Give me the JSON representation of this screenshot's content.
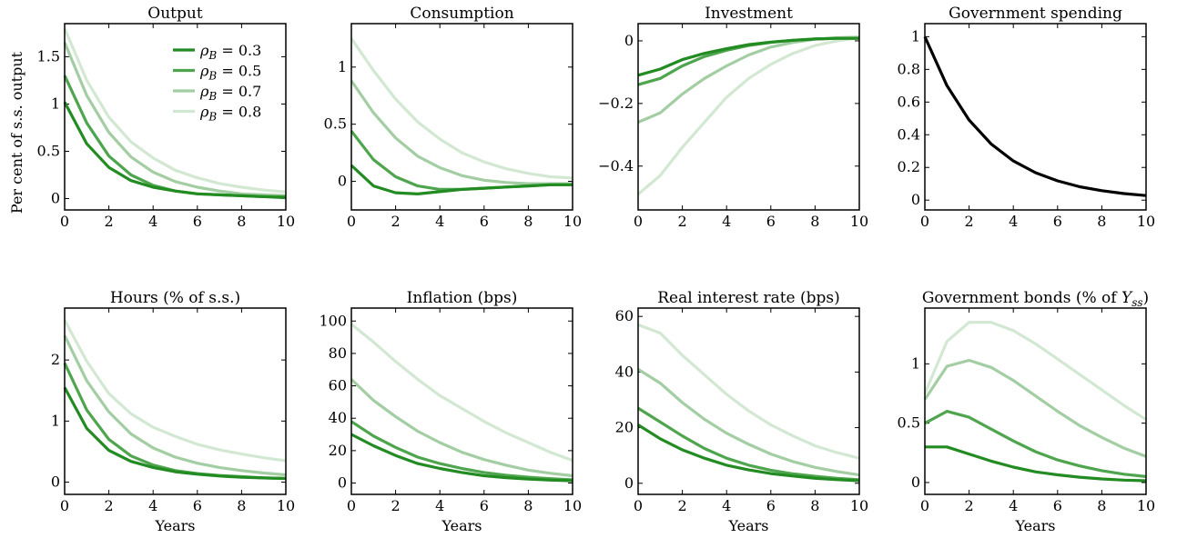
{
  "figure": {
    "ylabel": "Per cent of s.s. output",
    "legend": {
      "placement": "top-right of first panel",
      "entries": [
        "ρB = 0.3",
        "ρB = 0.5",
        "ρB = 0.7",
        "ρB = 0.8"
      ]
    }
  },
  "colors": {
    "rho_0_3": "#228b22",
    "rho_0_5": "#4ea54e",
    "rho_0_7": "#a3cda3",
    "rho_0_8": "#d2e8d2",
    "government_spending": "#000000"
  },
  "chart_data": [
    {
      "type": "line",
      "title": "Output",
      "xlabel": "",
      "ylabel": "Per cent of s.s. output",
      "x": [
        0,
        1,
        2,
        3,
        4,
        5,
        6,
        7,
        8,
        9,
        10
      ],
      "xlim": [
        0,
        10
      ],
      "ylim": [
        -0.12,
        1.85
      ],
      "xticks": [
        "0",
        "2",
        "4",
        "6",
        "8",
        "10"
      ],
      "yticks": [
        0,
        0.5,
        1,
        1.5
      ],
      "series": [
        {
          "name": "ρB = 0.3",
          "values": [
            1.02,
            0.58,
            0.33,
            0.19,
            0.12,
            0.08,
            0.05,
            0.04,
            0.03,
            0.02,
            0.01
          ]
        },
        {
          "name": "ρB = 0.5",
          "values": [
            1.3,
            0.8,
            0.45,
            0.25,
            0.14,
            0.08,
            0.05,
            0.04,
            0.03,
            0.02,
            0.02
          ]
        },
        {
          "name": "ρB = 0.7",
          "values": [
            1.65,
            1.09,
            0.7,
            0.44,
            0.28,
            0.18,
            0.12,
            0.08,
            0.05,
            0.04,
            0.03
          ]
        },
        {
          "name": "ρB = 0.8",
          "values": [
            1.8,
            1.25,
            0.86,
            0.6,
            0.43,
            0.3,
            0.22,
            0.16,
            0.12,
            0.09,
            0.07
          ]
        }
      ]
    },
    {
      "type": "line",
      "title": "Consumption",
      "xlabel": "",
      "x": [
        0,
        1,
        2,
        3,
        4,
        5,
        6,
        7,
        8,
        9,
        10
      ],
      "xlim": [
        0,
        10
      ],
      "ylim": [
        -0.25,
        1.38
      ],
      "xticks": [
        "0",
        "2",
        "4",
        "6",
        "8",
        "10"
      ],
      "yticks": [
        0,
        0.5,
        1
      ],
      "series": [
        {
          "name": "ρB = 0.3",
          "values": [
            0.14,
            -0.04,
            -0.1,
            -0.11,
            -0.09,
            -0.07,
            -0.06,
            -0.05,
            -0.04,
            -0.03,
            -0.03
          ]
        },
        {
          "name": "ρB = 0.5",
          "values": [
            0.44,
            0.19,
            0.04,
            -0.04,
            -0.07,
            -0.07,
            -0.06,
            -0.05,
            -0.04,
            -0.03,
            -0.03
          ]
        },
        {
          "name": "ρB = 0.7",
          "values": [
            0.88,
            0.6,
            0.38,
            0.22,
            0.12,
            0.05,
            0.01,
            -0.01,
            -0.02,
            -0.02,
            -0.02
          ]
        },
        {
          "name": "ρB = 0.8",
          "values": [
            1.25,
            0.97,
            0.72,
            0.52,
            0.37,
            0.25,
            0.17,
            0.11,
            0.07,
            0.04,
            0.03
          ]
        }
      ]
    },
    {
      "type": "line",
      "title": "Investment",
      "xlabel": "",
      "x": [
        0,
        1,
        2,
        3,
        4,
        5,
        6,
        7,
        8,
        9,
        10
      ],
      "xlim": [
        0,
        10
      ],
      "ylim": [
        -0.54,
        0.055
      ],
      "xticks": [
        "0",
        "2",
        "4",
        "6",
        "8",
        "10"
      ],
      "yticks": [
        0,
        -0.2,
        -0.4
      ],
      "ytick_labels": [
        "0",
        "−0.2",
        "−0.4"
      ],
      "series": [
        {
          "name": "ρB = 0.3",
          "values": [
            -0.11,
            -0.09,
            -0.06,
            -0.04,
            -0.025,
            -0.012,
            -0.004,
            0.002,
            0.006,
            0.008,
            0.008
          ]
        },
        {
          "name": "ρB = 0.5",
          "values": [
            -0.14,
            -0.12,
            -0.08,
            -0.05,
            -0.03,
            -0.015,
            -0.005,
            0.002,
            0.006,
            0.008,
            0.008
          ]
        },
        {
          "name": "ρB = 0.7",
          "values": [
            -0.26,
            -0.23,
            -0.17,
            -0.12,
            -0.08,
            -0.045,
            -0.02,
            -0.005,
            0.005,
            0.01,
            0.012
          ]
        },
        {
          "name": "ρB = 0.8",
          "values": [
            -0.49,
            -0.43,
            -0.34,
            -0.26,
            -0.18,
            -0.12,
            -0.075,
            -0.04,
            -0.015,
            0.0,
            0.01
          ]
        }
      ]
    },
    {
      "type": "line",
      "title": "Government spending",
      "xlabel": "",
      "x": [
        0,
        1,
        2,
        3,
        4,
        5,
        6,
        7,
        8,
        9,
        10
      ],
      "xlim": [
        0,
        10
      ],
      "ylim": [
        -0.06,
        1.08
      ],
      "xticks": [
        "0",
        "2",
        "4",
        "6",
        "8",
        "10"
      ],
      "yticks": [
        0,
        0.2,
        0.4,
        0.6,
        0.8,
        1
      ],
      "series": [
        {
          "values": [
            1.0,
            0.7,
            0.49,
            0.343,
            0.24,
            0.168,
            0.118,
            0.082,
            0.058,
            0.04,
            0.028
          ],
          "color": "#000000"
        }
      ]
    },
    {
      "type": "line",
      "title": "Hours (% of s.s.)",
      "xlabel": "Years",
      "x": [
        0,
        1,
        2,
        3,
        4,
        5,
        6,
        7,
        8,
        9,
        10
      ],
      "xlim": [
        0,
        10
      ],
      "ylim": [
        -0.2,
        2.85
      ],
      "xticks": [
        "0",
        "2",
        "4",
        "6",
        "8",
        "10"
      ],
      "yticks": [
        0,
        1,
        2
      ],
      "series": [
        {
          "name": "ρB = 0.3",
          "values": [
            1.55,
            0.88,
            0.52,
            0.34,
            0.24,
            0.17,
            0.13,
            0.1,
            0.08,
            0.07,
            0.06
          ]
        },
        {
          "name": "ρB = 0.5",
          "values": [
            1.95,
            1.18,
            0.7,
            0.43,
            0.28,
            0.19,
            0.14,
            0.11,
            0.09,
            0.07,
            0.06
          ]
        },
        {
          "name": "ρB = 0.7",
          "values": [
            2.4,
            1.66,
            1.15,
            0.79,
            0.56,
            0.41,
            0.31,
            0.24,
            0.19,
            0.15,
            0.12
          ]
        },
        {
          "name": "ρB = 0.8",
          "values": [
            2.65,
            1.98,
            1.45,
            1.12,
            0.9,
            0.75,
            0.62,
            0.53,
            0.46,
            0.4,
            0.35
          ]
        }
      ]
    },
    {
      "type": "line",
      "title": "Inflation (bps)",
      "xlabel": "Years",
      "x": [
        0,
        1,
        2,
        3,
        4,
        5,
        6,
        7,
        8,
        9,
        10
      ],
      "xlim": [
        0,
        10
      ],
      "ylim": [
        -7,
        108
      ],
      "xticks": [
        "0",
        "2",
        "4",
        "6",
        "8",
        "10"
      ],
      "yticks": [
        0,
        20,
        40,
        60,
        80,
        100
      ],
      "series": [
        {
          "name": "ρB = 0.3",
          "values": [
            30,
            23,
            17,
            12,
            9,
            6.5,
            4.5,
            3.3,
            2.4,
            1.8,
            1.4
          ]
        },
        {
          "name": "ρB = 0.5",
          "values": [
            38,
            29,
            22,
            16,
            12,
            9,
            6.5,
            4.8,
            3.6,
            2.7,
            2
          ]
        },
        {
          "name": "ρB = 0.7",
          "values": [
            64,
            51,
            41,
            32,
            25,
            19,
            14.5,
            11,
            8,
            6,
            4.5
          ]
        },
        {
          "name": "ρB = 0.8",
          "values": [
            98,
            87,
            75,
            64,
            54,
            46,
            38,
            31,
            25,
            19,
            14
          ]
        }
      ]
    },
    {
      "type": "line",
      "title": "Real interest rate (bps)",
      "xlabel": "Years",
      "x": [
        0,
        1,
        2,
        3,
        4,
        5,
        6,
        7,
        8,
        9,
        10
      ],
      "xlim": [
        0,
        10
      ],
      "ylim": [
        -4,
        63
      ],
      "xticks": [
        "0",
        "2",
        "4",
        "6",
        "8",
        "10"
      ],
      "yticks": [
        0,
        20,
        40,
        60
      ],
      "series": [
        {
          "name": "ρB = 0.3",
          "values": [
            21,
            16,
            12,
            9,
            6.5,
            4.8,
            3.5,
            2.6,
            1.8,
            1.3,
            0.9
          ]
        },
        {
          "name": "ρB = 0.5",
          "values": [
            27,
            22,
            17,
            12.5,
            9,
            6.5,
            4.7,
            3.4,
            2.5,
            1.8,
            1.3
          ]
        },
        {
          "name": "ρB = 0.7",
          "values": [
            41,
            36,
            29,
            23,
            18,
            14,
            10.5,
            7.8,
            5.7,
            4.2,
            3
          ]
        },
        {
          "name": "ρB = 0.8",
          "values": [
            57,
            54,
            46,
            39,
            32,
            26,
            21,
            17,
            13.5,
            11,
            9
          ]
        }
      ]
    },
    {
      "type": "line",
      "title": "Government bonds (% of Yss)",
      "xlabel": "Years",
      "x": [
        0,
        1,
        2,
        3,
        4,
        5,
        6,
        7,
        8,
        9,
        10
      ],
      "xlim": [
        0,
        10
      ],
      "ylim": [
        -0.1,
        1.47
      ],
      "xticks": [
        "0",
        "2",
        "4",
        "6",
        "8",
        "10"
      ],
      "yticks": [
        0,
        0.5,
        1
      ],
      "series": [
        {
          "name": "ρB = 0.3",
          "values": [
            0.3,
            0.3,
            0.24,
            0.18,
            0.13,
            0.09,
            0.065,
            0.045,
            0.03,
            0.02,
            0.015
          ]
        },
        {
          "name": "ρB = 0.5",
          "values": [
            0.5,
            0.6,
            0.55,
            0.45,
            0.35,
            0.26,
            0.19,
            0.14,
            0.1,
            0.07,
            0.05
          ]
        },
        {
          "name": "ρB = 0.7",
          "values": [
            0.7,
            0.98,
            1.03,
            0.97,
            0.86,
            0.73,
            0.6,
            0.48,
            0.38,
            0.29,
            0.22
          ]
        },
        {
          "name": "ρB = 0.8",
          "values": [
            0.75,
            1.19,
            1.35,
            1.35,
            1.28,
            1.17,
            1.04,
            0.91,
            0.78,
            0.65,
            0.53
          ]
        }
      ]
    }
  ]
}
